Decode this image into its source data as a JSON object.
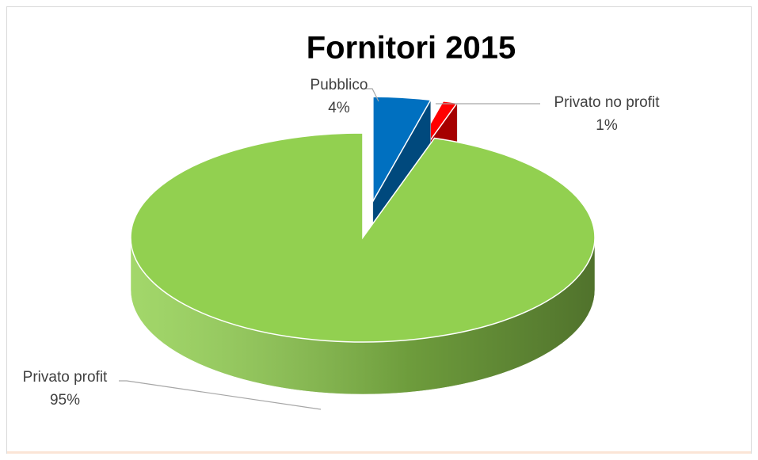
{
  "chart_data": {
    "type": "pie",
    "title": "Fornitori 2015",
    "categories": [
      "Pubblico",
      "Privato no profit",
      "Privato profit"
    ],
    "values": [
      4,
      1,
      95
    ],
    "value_labels": [
      "4%",
      "1%",
      "95%"
    ],
    "colors": [
      "#0070c0",
      "#ff0000",
      "#92d050"
    ]
  }
}
